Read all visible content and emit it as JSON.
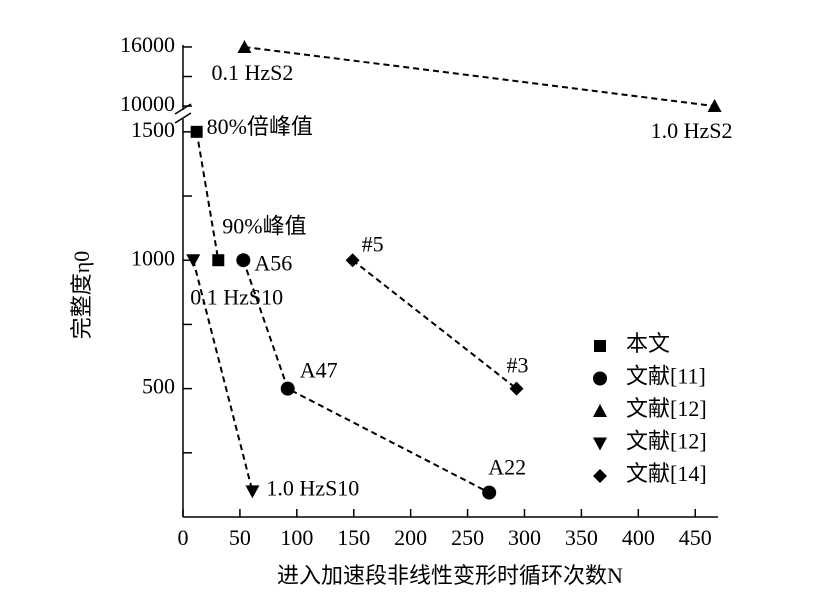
{
  "chart_data": {
    "type": "scatter",
    "x_label": "进入加速段非线性变形时循环次数N",
    "y_label": "完整度η0",
    "xlim": [
      0,
      470
    ],
    "xticks": [
      0,
      50,
      100,
      150,
      200,
      250,
      300,
      350,
      400,
      450
    ],
    "ylim": [
      0,
      1550
    ],
    "yticks": [
      500,
      1000,
      1500
    ],
    "yminor": [
      250,
      750,
      1250
    ],
    "upper_ylim": [
      9600,
      16200
    ],
    "upper_yticks": [
      10000,
      16000
    ],
    "upper_yminor": [
      13000
    ],
    "axis_break": true,
    "line_style": "dashed",
    "legend": "lower right",
    "series": [
      {
        "name": "本文",
        "marker": "square",
        "color": "#000000",
        "x": [
          12,
          31
        ],
        "values": [
          1500,
          1000
        ],
        "point_labels": [
          "80%倍峰值",
          "90%峰值"
        ]
      },
      {
        "name": "文献[11]",
        "marker": "circle",
        "color": "#000000",
        "x": [
          53,
          92,
          269
        ],
        "values": [
          1000,
          500,
          95
        ],
        "point_labels": [
          "A56",
          "A47",
          "A22"
        ]
      },
      {
        "name": "文献[12]",
        "marker": "triangle-up",
        "color": "#000000",
        "x": [
          54,
          467
        ],
        "values": [
          16000,
          10000
        ],
        "point_labels": [
          "0.1 HzS2",
          "1.0 HzS2"
        ]
      },
      {
        "name": "文献[12]",
        "marker": "triangle-down",
        "color": "#000000",
        "x": [
          9,
          61
        ],
        "values": [
          1000,
          100
        ],
        "point_labels": [
          "0.1 HzS10",
          "1.0 HzS10"
        ]
      },
      {
        "name": "文献[14]",
        "marker": "diamond",
        "color": "#000000",
        "x": [
          149,
          293
        ],
        "values": [
          1000,
          500
        ],
        "point_labels": [
          "#5",
          "#3"
        ]
      }
    ]
  }
}
